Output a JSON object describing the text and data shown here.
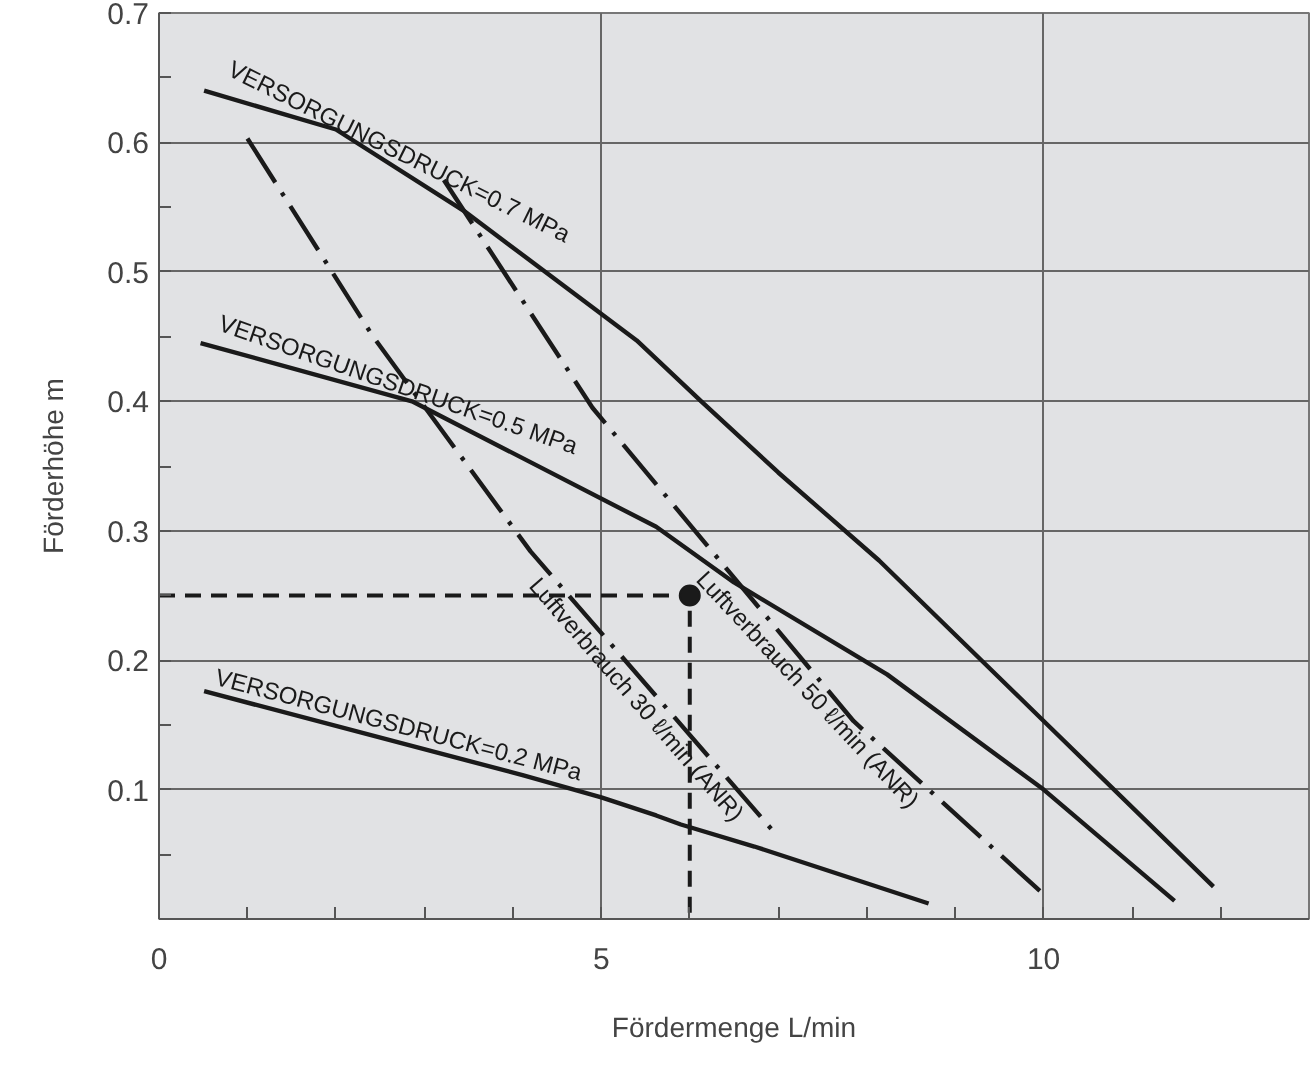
{
  "chart_data": {
    "type": "line",
    "xlabel": "Fördermenge L/min",
    "ylabel": "Förderhöhe m",
    "xlim": [
      0,
      13
    ],
    "ylim": [
      0,
      0.7
    ],
    "xticks": [
      0,
      {
        "value": 1,
        "label": null
      },
      {
        "value": 2,
        "label": null
      },
      {
        "value": 3,
        "label": null
      },
      {
        "value": 4,
        "label": null
      },
      5,
      {
        "value": 6,
        "label": null
      },
      {
        "value": 7,
        "label": null
      },
      {
        "value": 8,
        "label": null
      },
      {
        "value": 9,
        "label": null
      },
      10,
      {
        "value": 11,
        "label": null
      },
      {
        "value": 12,
        "label": null
      }
    ],
    "yticks": [
      {
        "value": 0.05,
        "label": null
      },
      0.1,
      {
        "value": 0.15,
        "label": null
      },
      0.2,
      {
        "value": 0.25,
        "label": null
      },
      0.3,
      {
        "value": 0.35,
        "label": null
      },
      0.4,
      {
        "value": 0.45,
        "label": null
      },
      0.5,
      {
        "value": 0.55,
        "label": null
      },
      0.6,
      {
        "value": 0.65,
        "label": null
      },
      0.7
    ],
    "grid": true,
    "marker": "none",
    "series": [
      {
        "name": "VERSORGUNGSDRUCK=0.7 MPa",
        "color": "#1a1a1a",
        "line_style": "solid",
        "x": [
          0.51,
          2,
          3.45,
          5.4,
          6.13,
          7,
          8.14,
          10,
          11.92
        ],
        "values": [
          0.64,
          0.61,
          0.547,
          0.447,
          0.4,
          0.345,
          0.277,
          0.153,
          0.025
        ]
      },
      {
        "name": "VERSORGUNGSDRUCK=0.5 MPa",
        "color": "#1a1a1a",
        "line_style": "solid",
        "x": [
          0.47,
          2.86,
          5.62,
          6.5,
          8.23,
          10,
          11.48
        ],
        "values": [
          0.445,
          0.4,
          0.303,
          0.26,
          0.189,
          0.1,
          0.014
        ]
      },
      {
        "name": "VERSORGUNGSDRUCK=0.2 MPa",
        "color": "#1a1a1a",
        "line_style": "solid",
        "x": [
          0.51,
          4.12,
          5,
          5.62,
          5.9,
          6.73,
          8.7
        ],
        "values": [
          0.176,
          0.111,
          0.094,
          0.08,
          0.073,
          0.056,
          0.012
        ]
      },
      {
        "name": "Luftverbrauch 50 ℓ/min (ANR)",
        "color": "#1a1a1a",
        "line_style": "dashdot",
        "x": [
          3.22,
          4.9,
          7.85,
          10
        ],
        "values": [
          0.571,
          0.395,
          0.153,
          0.019
        ]
      },
      {
        "name": "Luftverbrauch 30 ℓ/min (ANR)",
        "color": "#1a1a1a",
        "line_style": "dashdot",
        "x": [
          1.0,
          2.42,
          4.2,
          6.98
        ],
        "values": [
          0.603,
          0.45,
          0.284,
          0.065
        ]
      },
      {
        "color": "#1a1a1a",
        "line_style": "dashed",
        "x": [
          0,
          6,
          6
        ],
        "values": [
          0.25,
          0.25,
          0
        ]
      },
      {
        "type": "scatter",
        "marker": "circle",
        "color": "#1a1a1a",
        "x": [
          6
        ],
        "values": [
          0.25
        ]
      }
    ]
  }
}
